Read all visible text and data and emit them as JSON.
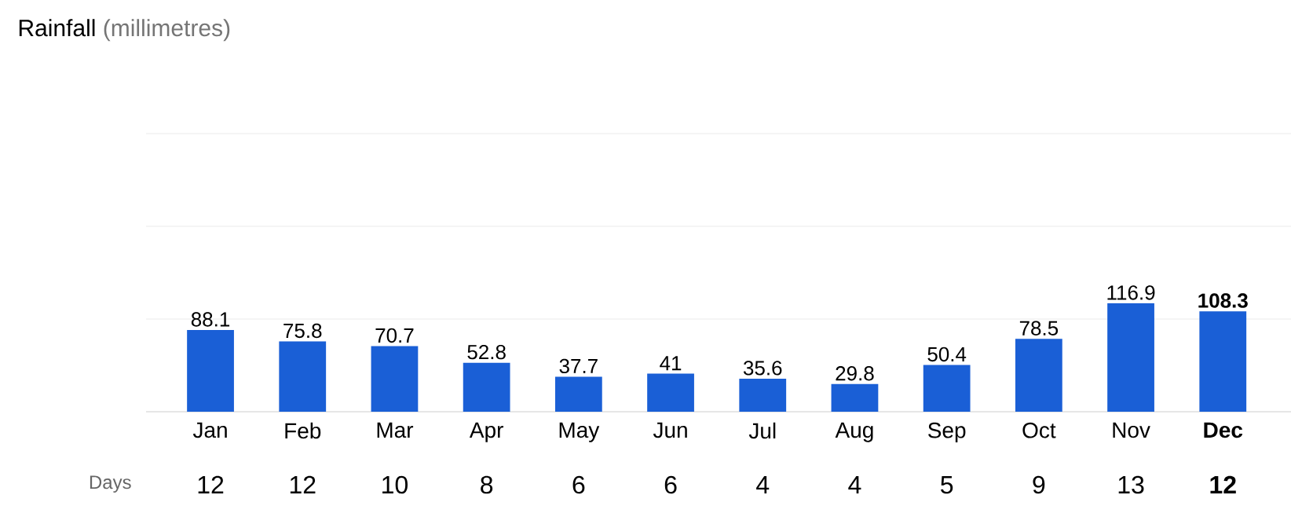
{
  "chart_data": {
    "type": "bar",
    "title": "Rainfall",
    "subtitle": "(millimetres)",
    "categories": [
      "Jan",
      "Feb",
      "Mar",
      "Apr",
      "May",
      "Jun",
      "Jul",
      "Aug",
      "Sep",
      "Oct",
      "Nov",
      "**Dec**"
    ],
    "values": [
      88.1,
      75.8,
      70.7,
      52.8,
      37.7,
      41,
      35.6,
      29.8,
      50.4,
      78.5,
      116.9,
      108.3
    ],
    "value_labels": [
      "88.1",
      "75.8",
      "70.7",
      "52.8",
      "37.7",
      "41",
      "35.6",
      "29.8",
      "50.4",
      "78.5",
      "116.9",
      "**108.3**"
    ],
    "color": "#1a5fd6",
    "ylim": [
      0,
      300
    ],
    "yticks": [
      {
        "value": 0,
        "label": null
      },
      {
        "value": 100,
        "label": null
      },
      {
        "value": 200,
        "label": null
      },
      {
        "value": 300,
        "label": null
      }
    ],
    "grid": "y",
    "annotations": [
      "Days",
      "12",
      "12",
      "10",
      "8",
      "6",
      "6",
      "4",
      "4",
      "5",
      "9",
      "13",
      "**12**"
    ]
  }
}
